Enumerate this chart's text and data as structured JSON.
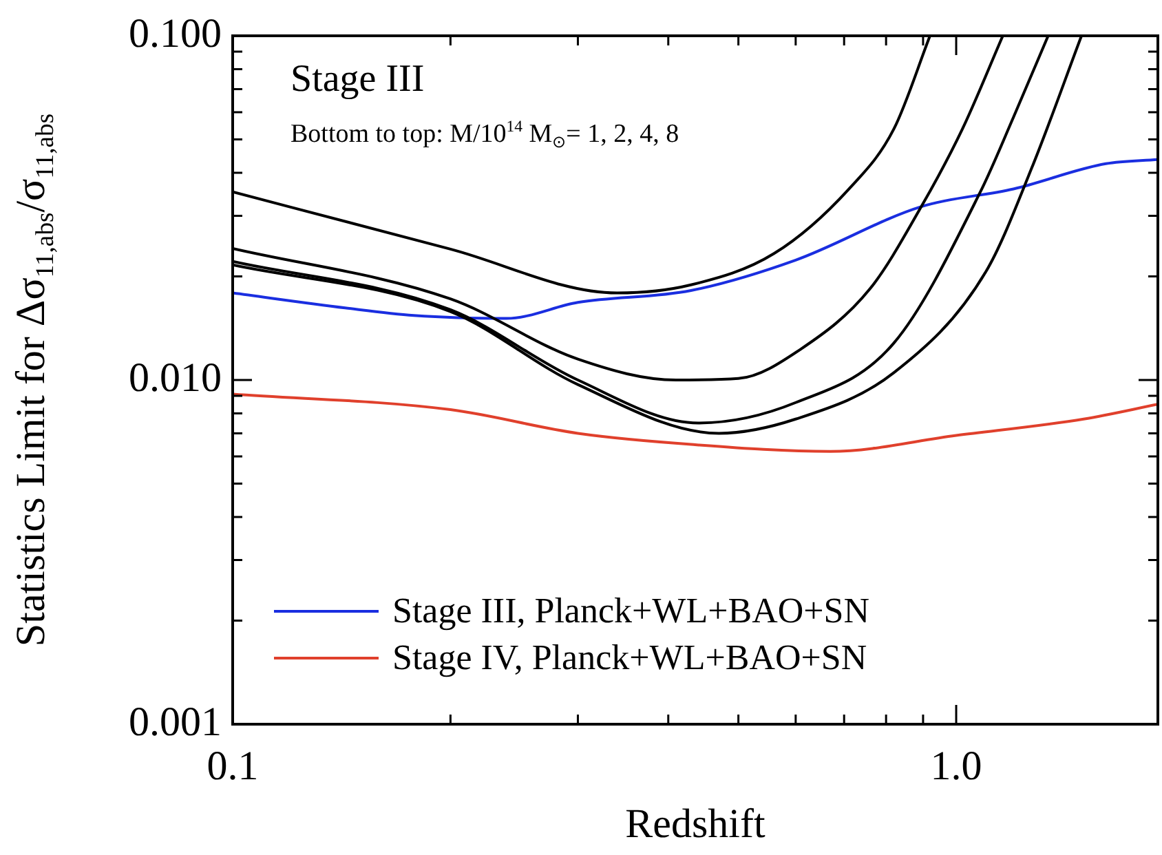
{
  "chart_data": {
    "type": "line",
    "xlabel": "Redshift",
    "ylabel": "Statistics Limit for Δσ$_{11,abs}$/σ$_{11,abs}$",
    "annotations": [
      "Stage III",
      "Bottom to top: M/10$^{14}$ M$_{⊙}$= 1, 2, 4, 8"
    ],
    "log": "xy",
    "grid": false,
    "legend": "bottom left",
    "line_style": "solid",
    "marker": "none",
    "xlim": [
      0.1,
      1.9
    ],
    "ylim": [
      0.001,
      0.1
    ],
    "xticks": [
      {
        "value": 0.1,
        "label": "0.1"
      },
      {
        "value": 0.2,
        "label": null
      },
      {
        "value": 0.3,
        "label": null
      },
      {
        "value": 0.4,
        "label": null
      },
      {
        "value": 0.5,
        "label": null
      },
      {
        "value": 0.6,
        "label": null
      },
      {
        "value": 0.7,
        "label": null
      },
      {
        "value": 0.8,
        "label": null
      },
      {
        "value": 0.9,
        "label": null
      },
      {
        "value": 1.0,
        "label": "1.0"
      }
    ],
    "yticks": [
      {
        "value": 0.001,
        "label": "0.001"
      },
      {
        "value": 0.002,
        "label": null
      },
      {
        "value": 0.003,
        "label": null
      },
      {
        "value": 0.004,
        "label": null
      },
      {
        "value": 0.005,
        "label": null
      },
      {
        "value": 0.006,
        "label": null
      },
      {
        "value": 0.007,
        "label": null
      },
      {
        "value": 0.008,
        "label": null
      },
      {
        "value": 0.009,
        "label": null
      },
      {
        "value": 0.01,
        "label": "0.010"
      },
      {
        "value": 0.02,
        "label": null
      },
      {
        "value": 0.03,
        "label": null
      },
      {
        "value": 0.04,
        "label": null
      },
      {
        "value": 0.05,
        "label": null
      },
      {
        "value": 0.06,
        "label": null
      },
      {
        "value": 0.07,
        "label": null
      },
      {
        "value": 0.08,
        "label": null
      },
      {
        "value": 0.09,
        "label": null
      },
      {
        "value": 0.1,
        "label": "0.100"
      }
    ],
    "series": [
      {
        "color": "#000000",
        "x": [
          0.1,
          0.2,
          0.3,
          0.41,
          0.5,
          0.61,
          0.76,
          0.895,
          1.02,
          1.16
        ],
        "values": [
          0.0241,
          0.0172,
          0.0115,
          0.01,
          0.0101,
          0.0123,
          0.0184,
          0.0319,
          0.0536,
          0.1
        ]
      },
      {
        "color": "#000000",
        "x": [
          0.1,
          0.2,
          0.3,
          0.44,
          0.6,
          0.82,
          1.08,
          1.2,
          1.34
        ],
        "values": [
          0.0221,
          0.016,
          0.01,
          0.0075,
          0.0086,
          0.0128,
          0.0352,
          0.058,
          0.1
        ]
      },
      {
        "color": "#000000",
        "x": [
          0.1,
          0.2,
          0.3,
          0.47,
          0.6,
          0.82,
          1.1,
          1.27,
          1.49
        ],
        "values": [
          0.0216,
          0.0158,
          0.0097,
          0.007,
          0.0077,
          0.0105,
          0.0207,
          0.041,
          0.1
        ]
      },
      {
        "color": "#000000",
        "x": [
          0.1,
          0.2,
          0.34,
          0.43,
          0.56,
          0.71,
          0.82,
          0.92
        ],
        "values": [
          0.0352,
          0.024,
          0.0179,
          0.0189,
          0.0233,
          0.0358,
          0.0536,
          0.1
        ]
      },
      {
        "name": "Stage III, Planck+WL+BAO+SN",
        "color": "#1a2ee0",
        "x": [
          0.1,
          0.143,
          0.178,
          0.239,
          0.3,
          0.43,
          0.6,
          0.895,
          1.2,
          1.61,
          1.9
        ],
        "values": [
          0.0179,
          0.0162,
          0.0154,
          0.0151,
          0.0168,
          0.0182,
          0.0223,
          0.0319,
          0.0359,
          0.0425,
          0.0437
        ]
      },
      {
        "name": "Stage IV, Planck+WL+BAO+SN",
        "color": "#e0402c",
        "x": [
          0.1,
          0.2,
          0.3,
          0.43,
          0.67,
          1.0,
          1.5,
          1.9
        ],
        "values": [
          0.0091,
          0.0082,
          0.007,
          0.0065,
          0.0062,
          0.0069,
          0.0077,
          0.0085
        ]
      }
    ]
  }
}
